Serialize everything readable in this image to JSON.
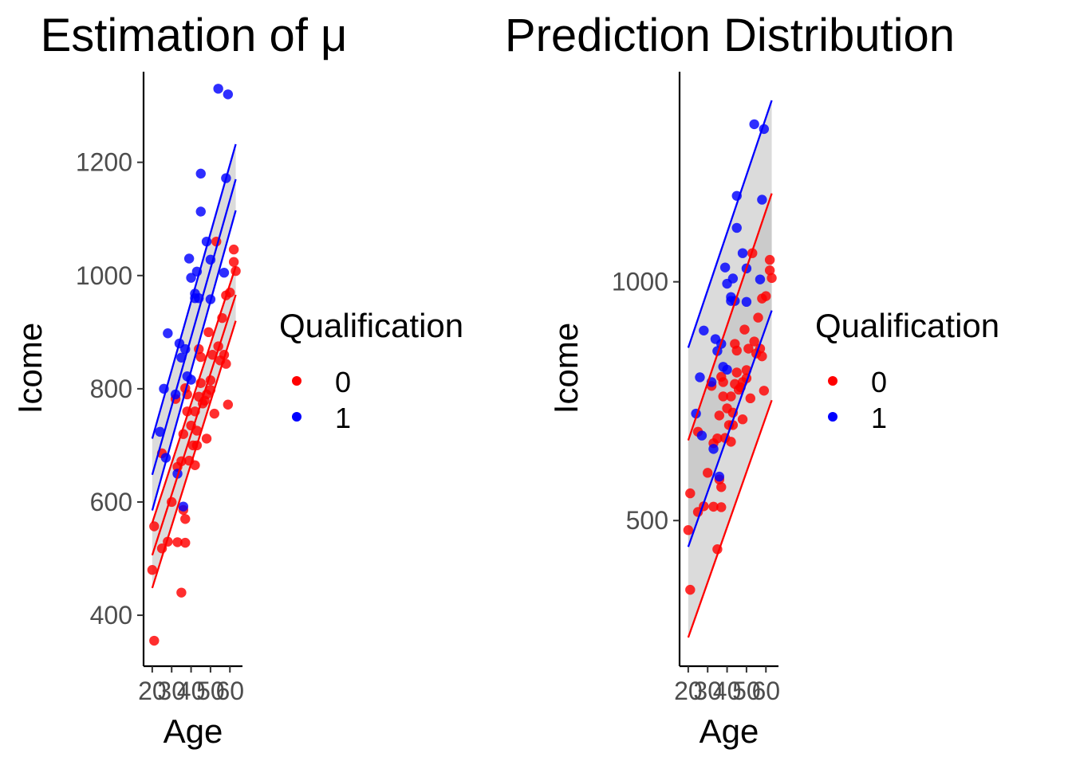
{
  "colors": {
    "group_0": "#ff0000",
    "group_1": "#0000ff",
    "band": "#bdbdbd",
    "axis": "#000000",
    "tick_text": "#4d4d4d"
  },
  "chart_data": [
    {
      "type": "scatter",
      "title": "Estimation of μ",
      "xlabel": "Age",
      "ylabel": "Icome",
      "xlim": [
        18,
        64
      ],
      "ylim": [
        310,
        1360
      ],
      "x_ticks": [
        20,
        30,
        40,
        50,
        60
      ],
      "x_tick_labels": [
        "20",
        "30",
        "40",
        "50",
        "60"
      ],
      "y_ticks": [
        400,
        600,
        800,
        1000,
        1200
      ],
      "grid": false,
      "legend": {
        "title": "Qualification",
        "entries": [
          "0",
          "1"
        ],
        "placement": "right"
      },
      "series": [
        {
          "name": "0",
          "color": "#ff0000",
          "points": [
            [
              20,
              480
            ],
            [
              21,
              557
            ],
            [
              21,
              355
            ],
            [
              25,
              686
            ],
            [
              25,
              518
            ],
            [
              28,
              530
            ],
            [
              30,
              600
            ],
            [
              32,
              782
            ],
            [
              33,
              662
            ],
            [
              33,
              529
            ],
            [
              35,
              672
            ],
            [
              35,
              440
            ],
            [
              36,
              720
            ],
            [
              36,
              586
            ],
            [
              37,
              801
            ],
            [
              37,
              570
            ],
            [
              37,
              528
            ],
            [
              38,
              760
            ],
            [
              38,
              790
            ],
            [
              39,
              673
            ],
            [
              40,
              735
            ],
            [
              41,
              700
            ],
            [
              42,
              665
            ],
            [
              42,
              760
            ],
            [
              43,
              726
            ],
            [
              43,
              700
            ],
            [
              44,
              870
            ],
            [
              44,
              786
            ],
            [
              45,
              856
            ],
            [
              45,
              810
            ],
            [
              46,
              774
            ],
            [
              47,
              779
            ],
            [
              48,
              790
            ],
            [
              48,
              712
            ],
            [
              49,
              900
            ],
            [
              50,
              815
            ],
            [
              50,
              798
            ],
            [
              51,
              860
            ],
            [
              52,
              756
            ],
            [
              53,
              1060
            ],
            [
              54,
              875
            ],
            [
              55,
              850
            ],
            [
              56,
              925
            ],
            [
              57,
              860
            ],
            [
              58,
              965
            ],
            [
              58,
              844
            ],
            [
              59,
              772
            ],
            [
              60,
              970
            ],
            [
              62,
              1046
            ],
            [
              62,
              1024
            ],
            [
              63,
              1008
            ]
          ],
          "mean": [
            [
              20,
              506
            ],
            [
              63,
              966
            ]
          ],
          "ci_lower": [
            [
              20,
              448
            ],
            [
              63,
              920
            ]
          ],
          "ci_upper": [
            [
              20,
              563
            ],
            [
              63,
              1016
            ]
          ]
        },
        {
          "name": "1",
          "color": "#0000ff",
          "points": [
            [
              24,
              724
            ],
            [
              26,
              800
            ],
            [
              27,
              678
            ],
            [
              28,
              898
            ],
            [
              32,
              790
            ],
            [
              33,
              650
            ],
            [
              34,
              880
            ],
            [
              35,
              855
            ],
            [
              36,
              592
            ],
            [
              37,
              870
            ],
            [
              38,
              822
            ],
            [
              39,
              1030
            ],
            [
              40,
              996
            ],
            [
              40,
              816
            ],
            [
              42,
              968
            ],
            [
              42,
              960
            ],
            [
              43,
              1007
            ],
            [
              44,
              960
            ],
            [
              45,
              1180
            ],
            [
              45,
              1113
            ],
            [
              48,
              1060
            ],
            [
              50,
              1028
            ],
            [
              50,
              958
            ],
            [
              54,
              1330
            ],
            [
              57,
              1005
            ],
            [
              58,
              1172
            ],
            [
              59,
              1320
            ]
          ],
          "mean": [
            [
              20,
              648
            ],
            [
              63,
              1170
            ]
          ],
          "ci_lower": [
            [
              20,
              585
            ],
            [
              63,
              1115
            ]
          ],
          "ci_upper": [
            [
              20,
              712
            ],
            [
              63,
              1232
            ]
          ]
        }
      ]
    },
    {
      "type": "scatter",
      "title": "Prediction Distribution",
      "xlabel": "Age",
      "ylabel": "Icome",
      "xlim": [
        18,
        64
      ],
      "ylim": [
        195,
        1440
      ],
      "x_ticks": [
        20,
        30,
        40,
        50,
        60
      ],
      "x_tick_labels": [
        "20",
        "30",
        "40",
        "50",
        "60"
      ],
      "y_ticks": [
        500,
        1000
      ],
      "grid": false,
      "legend": {
        "title": "Qualification",
        "entries": [
          "0",
          "1"
        ],
        "placement": "right"
      },
      "series": [
        {
          "name": "0",
          "color": "#ff0000",
          "points": [
            [
              20,
              480
            ],
            [
              21,
              557
            ],
            [
              21,
              355
            ],
            [
              25,
              686
            ],
            [
              25,
              518
            ],
            [
              28,
              530
            ],
            [
              30,
              600
            ],
            [
              32,
              782
            ],
            [
              33,
              662
            ],
            [
              33,
              529
            ],
            [
              35,
              672
            ],
            [
              35,
              440
            ],
            [
              36,
              720
            ],
            [
              36,
              586
            ],
            [
              37,
              801
            ],
            [
              37,
              570
            ],
            [
              37,
              528
            ],
            [
              38,
              760
            ],
            [
              38,
              790
            ],
            [
              39,
              673
            ],
            [
              40,
              735
            ],
            [
              41,
              700
            ],
            [
              42,
              665
            ],
            [
              42,
              760
            ],
            [
              43,
              726
            ],
            [
              43,
              700
            ],
            [
              44,
              870
            ],
            [
              44,
              786
            ],
            [
              45,
              856
            ],
            [
              45,
              810
            ],
            [
              46,
              774
            ],
            [
              47,
              779
            ],
            [
              48,
              790
            ],
            [
              48,
              712
            ],
            [
              49,
              900
            ],
            [
              50,
              815
            ],
            [
              50,
              798
            ],
            [
              51,
              860
            ],
            [
              52,
              756
            ],
            [
              53,
              1060
            ],
            [
              54,
              875
            ],
            [
              55,
              850
            ],
            [
              56,
              925
            ],
            [
              57,
              860
            ],
            [
              58,
              965
            ],
            [
              58,
              844
            ],
            [
              59,
              772
            ],
            [
              60,
              970
            ],
            [
              62,
              1046
            ],
            [
              62,
              1024
            ],
            [
              63,
              1008
            ]
          ],
          "pi_lower": [
            [
              20,
              255
            ],
            [
              63,
              752
            ]
          ],
          "pi_upper": [
            [
              20,
              668
            ],
            [
              63,
              1185
            ]
          ]
        },
        {
          "name": "1",
          "color": "#0000ff",
          "points": [
            [
              24,
              724
            ],
            [
              26,
              800
            ],
            [
              27,
              678
            ],
            [
              28,
              898
            ],
            [
              32,
              790
            ],
            [
              33,
              650
            ],
            [
              34,
              880
            ],
            [
              35,
              855
            ],
            [
              36,
              592
            ],
            [
              37,
              870
            ],
            [
              38,
              822
            ],
            [
              39,
              1030
            ],
            [
              40,
              996
            ],
            [
              40,
              816
            ],
            [
              42,
              968
            ],
            [
              42,
              960
            ],
            [
              43,
              1007
            ],
            [
              44,
              960
            ],
            [
              45,
              1180
            ],
            [
              45,
              1113
            ],
            [
              48,
              1060
            ],
            [
              50,
              1028
            ],
            [
              50,
              958
            ],
            [
              54,
              1330
            ],
            [
              57,
              1005
            ],
            [
              58,
              1172
            ],
            [
              59,
              1320
            ]
          ],
          "pi_lower": [
            [
              20,
              445
            ],
            [
              63,
              940
            ]
          ],
          "pi_upper": [
            [
              20,
              862
            ],
            [
              63,
              1380
            ]
          ]
        }
      ]
    }
  ]
}
